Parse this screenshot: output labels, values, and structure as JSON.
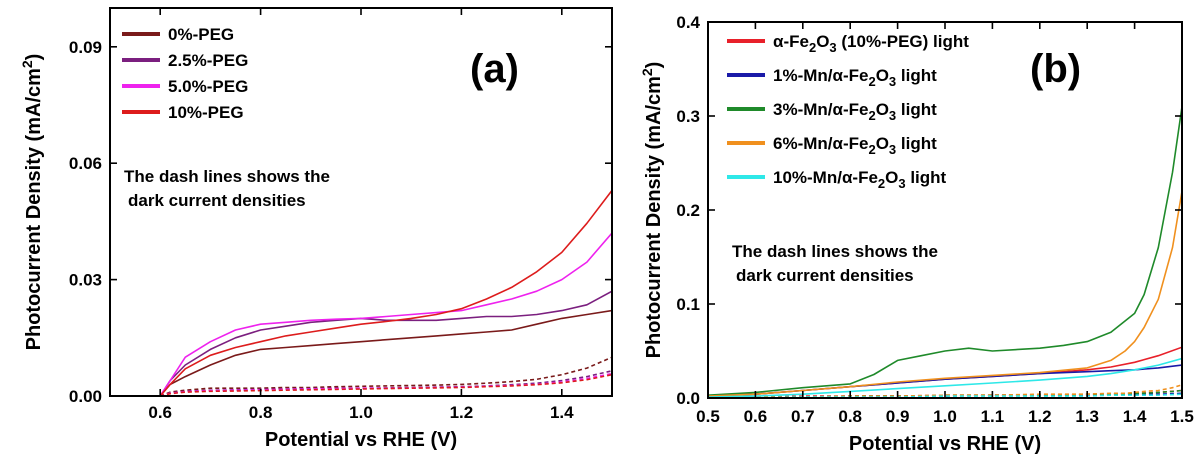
{
  "chart_data": [
    {
      "type": "line",
      "panel_label": "(a)",
      "xlabel": "Potential vs RHE (V)",
      "ylabel": "Photocurrent Density (mA/cm",
      "ylabel_sup": "2",
      "ylabel_close": ")",
      "xlim": [
        0.5,
        1.5
      ],
      "ylim": [
        0,
        0.1
      ],
      "xticks": [
        0.6,
        0.8,
        1.0,
        1.2,
        1.4
      ],
      "xticklabels": [
        "0.6",
        "0.8",
        "1.0",
        "1.2",
        "1.4"
      ],
      "yticks": [
        0,
        0.03,
        0.06,
        0.09
      ],
      "yticklabels": [
        "0.00",
        "0.03",
        "0.06",
        "0.09"
      ],
      "legend_position": "top-left",
      "annotation": [
        "The dash lines shows the",
        "dark current densities"
      ],
      "series": [
        {
          "name": "0%-PEG",
          "color": "#7a1a1a",
          "x": [
            0.6,
            0.62,
            0.65,
            0.7,
            0.75,
            0.8,
            0.85,
            0.9,
            0.95,
            1.0,
            1.05,
            1.1,
            1.15,
            1.2,
            1.25,
            1.3,
            1.35,
            1.4,
            1.45,
            1.5
          ],
          "y": [
            0.0,
            0.003,
            0.005,
            0.008,
            0.0105,
            0.012,
            0.0125,
            0.013,
            0.0135,
            0.014,
            0.0145,
            0.015,
            0.0155,
            0.016,
            0.0165,
            0.017,
            0.0185,
            0.02,
            0.021,
            0.022
          ],
          "dark_y": [
            0.0,
            0.001,
            0.0015,
            0.002,
            0.002,
            0.002,
            0.0022,
            0.0022,
            0.0024,
            0.0025,
            0.0026,
            0.0027,
            0.0028,
            0.003,
            0.0033,
            0.0037,
            0.0043,
            0.0055,
            0.0072,
            0.01
          ]
        },
        {
          "name": "2.5%-PEG",
          "color": "#7b1f7f",
          "x": [
            0.6,
            0.62,
            0.65,
            0.7,
            0.75,
            0.8,
            0.85,
            0.9,
            0.95,
            1.0,
            1.05,
            1.1,
            1.15,
            1.2,
            1.25,
            1.3,
            1.35,
            1.4,
            1.45,
            1.5
          ],
          "y": [
            0.0,
            0.004,
            0.008,
            0.012,
            0.015,
            0.017,
            0.018,
            0.019,
            0.0195,
            0.02,
            0.0195,
            0.0195,
            0.0195,
            0.02,
            0.0205,
            0.0205,
            0.021,
            0.022,
            0.0235,
            0.027
          ],
          "dark_y": [
            0.0,
            0.0008,
            0.0012,
            0.0015,
            0.0016,
            0.0017,
            0.0018,
            0.0019,
            0.002,
            0.002,
            0.0021,
            0.0022,
            0.0023,
            0.0024,
            0.0026,
            0.0029,
            0.0033,
            0.004,
            0.005,
            0.0065
          ]
        },
        {
          "name": "5.0%-PEG",
          "color": "#ee22ee",
          "x": [
            0.6,
            0.62,
            0.65,
            0.7,
            0.75,
            0.8,
            0.85,
            0.9,
            0.95,
            1.0,
            1.05,
            1.1,
            1.15,
            1.2,
            1.25,
            1.3,
            1.35,
            1.4,
            1.45,
            1.5
          ],
          "y": [
            0.0,
            0.004,
            0.01,
            0.014,
            0.017,
            0.0185,
            0.019,
            0.0195,
            0.0198,
            0.02,
            0.0205,
            0.021,
            0.0215,
            0.022,
            0.0235,
            0.025,
            0.027,
            0.03,
            0.0345,
            0.042
          ],
          "dark_y": [
            0.0,
            0.0007,
            0.0011,
            0.0014,
            0.0015,
            0.0016,
            0.0017,
            0.0018,
            0.0019,
            0.002,
            0.002,
            0.0021,
            0.0022,
            0.0023,
            0.0025,
            0.0027,
            0.003,
            0.0036,
            0.0045,
            0.0058
          ]
        },
        {
          "name": "10%-PEG",
          "color": "#dd1c1c",
          "x": [
            0.6,
            0.62,
            0.65,
            0.7,
            0.75,
            0.8,
            0.85,
            0.9,
            0.95,
            1.0,
            1.05,
            1.1,
            1.15,
            1.2,
            1.25,
            1.3,
            1.35,
            1.4,
            1.45,
            1.5
          ],
          "y": [
            0.0,
            0.003,
            0.007,
            0.0105,
            0.0125,
            0.014,
            0.0155,
            0.0165,
            0.0175,
            0.0185,
            0.0192,
            0.02,
            0.021,
            0.0225,
            0.025,
            0.028,
            0.032,
            0.037,
            0.0445,
            0.053
          ],
          "dark_y": [
            0.0,
            0.0006,
            0.001,
            0.0012,
            0.0013,
            0.0014,
            0.0015,
            0.0016,
            0.0017,
            0.0018,
            0.0019,
            0.002,
            0.0021,
            0.0022,
            0.0024,
            0.0026,
            0.0029,
            0.0034,
            0.0042,
            0.0055
          ]
        }
      ]
    },
    {
      "type": "line",
      "panel_label": "(b)",
      "xlabel": "Potential vs RHE (V)",
      "ylabel": "Photocurrent Density (mA/cm",
      "ylabel_sup": "2",
      "ylabel_close": ")",
      "xlim": [
        0.5,
        1.5
      ],
      "ylim": [
        0,
        0.4
      ],
      "xticks": [
        0.5,
        0.6,
        0.7,
        0.8,
        0.9,
        1.0,
        1.1,
        1.2,
        1.3,
        1.4,
        1.5
      ],
      "xticklabels": [
        "0.5",
        "0.6",
        "0.7",
        "0.8",
        "0.9",
        "1.0",
        "1.1",
        "1.2",
        "1.3",
        "1.4",
        "1.5"
      ],
      "yticks": [
        0,
        0.1,
        0.2,
        0.3,
        0.4
      ],
      "yticklabels": [
        "0.0",
        "0.1",
        "0.2",
        "0.3",
        "0.4"
      ],
      "legend_position": "top-left",
      "annotation": [
        "The dash lines shows the",
        "dark current densities"
      ],
      "series": [
        {
          "name": "α-Fe₂O₃ (10%-PEG) light",
          "legend_parts": [
            "α-Fe",
            "2",
            "O",
            "3",
            " (10%-PEG) light"
          ],
          "color": "#e8202a",
          "x": [
            0.5,
            0.6,
            0.7,
            0.8,
            0.9,
            1.0,
            1.1,
            1.2,
            1.3,
            1.35,
            1.4,
            1.45,
            1.5
          ],
          "y": [
            0.002,
            0.004,
            0.008,
            0.012,
            0.016,
            0.02,
            0.023,
            0.026,
            0.03,
            0.033,
            0.038,
            0.045,
            0.054
          ],
          "dark_y": [
            0.0,
            0.001,
            0.002,
            0.002,
            0.002,
            0.003,
            0.003,
            0.003,
            0.004,
            0.004,
            0.005,
            0.006,
            0.008
          ]
        },
        {
          "name": "1%-Mn/α-Fe₂O₃ light",
          "legend_parts": [
            "1%-Mn/α-Fe",
            "2",
            "O",
            "3",
            " light"
          ],
          "color": "#1a1aa8",
          "x": [
            0.5,
            0.6,
            0.7,
            0.8,
            0.9,
            1.0,
            1.1,
            1.2,
            1.3,
            1.35,
            1.4,
            1.45,
            1.5
          ],
          "y": [
            0.002,
            0.004,
            0.008,
            0.012,
            0.016,
            0.02,
            0.023,
            0.026,
            0.028,
            0.029,
            0.03,
            0.032,
            0.035
          ],
          "dark_y": [
            0.0,
            0.001,
            0.001,
            0.002,
            0.002,
            0.002,
            0.003,
            0.003,
            0.003,
            0.003,
            0.004,
            0.004,
            0.005
          ]
        },
        {
          "name": "3%-Mn/α-Fe₂O₃ light",
          "legend_parts": [
            "3%-Mn/α-Fe",
            "2",
            "O",
            "3",
            " light"
          ],
          "color": "#1f8a2a",
          "x": [
            0.5,
            0.6,
            0.7,
            0.8,
            0.85,
            0.9,
            0.95,
            1.0,
            1.05,
            1.1,
            1.2,
            1.25,
            1.3,
            1.35,
            1.4,
            1.42,
            1.45,
            1.48,
            1.5
          ],
          "y": [
            0.003,
            0.006,
            0.011,
            0.015,
            0.025,
            0.04,
            0.045,
            0.05,
            0.053,
            0.05,
            0.053,
            0.056,
            0.06,
            0.07,
            0.09,
            0.11,
            0.16,
            0.24,
            0.31
          ],
          "dark_y": [
            0.0,
            0.001,
            0.001,
            0.002,
            0.002,
            0.002,
            0.002,
            0.003,
            0.003,
            0.003,
            0.003,
            0.003,
            0.004,
            0.004,
            0.005,
            0.005,
            0.006,
            0.007,
            0.008
          ]
        },
        {
          "name": "6%-Mn/α-Fe₂O₃ light",
          "legend_parts": [
            "6%-Mn/α-Fe",
            "2",
            "O",
            "3",
            " light"
          ],
          "color": "#f0901e",
          "x": [
            0.5,
            0.6,
            0.7,
            0.8,
            0.9,
            1.0,
            1.1,
            1.2,
            1.3,
            1.35,
            1.38,
            1.4,
            1.42,
            1.45,
            1.48,
            1.5
          ],
          "y": [
            0.002,
            0.004,
            0.008,
            0.012,
            0.017,
            0.021,
            0.024,
            0.027,
            0.032,
            0.04,
            0.05,
            0.06,
            0.075,
            0.105,
            0.16,
            0.22
          ],
          "dark_y": [
            0.0,
            0.001,
            0.001,
            0.002,
            0.002,
            0.003,
            0.003,
            0.004,
            0.004,
            0.005,
            0.005,
            0.006,
            0.007,
            0.008,
            0.011,
            0.014
          ]
        },
        {
          "name": "10%-Mn/α-Fe₂O₃ light",
          "legend_parts": [
            "10%-Mn/α-Fe",
            "2",
            "O",
            "3",
            " light"
          ],
          "color": "#2ee8e8",
          "x": [
            0.5,
            0.6,
            0.7,
            0.8,
            0.9,
            1.0,
            1.1,
            1.2,
            1.3,
            1.35,
            1.4,
            1.45,
            1.5
          ],
          "y": [
            0.001,
            0.002,
            0.004,
            0.007,
            0.01,
            0.013,
            0.016,
            0.019,
            0.023,
            0.026,
            0.03,
            0.035,
            0.042
          ],
          "dark_y": [
            0.0,
            0.0,
            0.001,
            0.001,
            0.001,
            0.002,
            0.002,
            0.002,
            0.002,
            0.003,
            0.003,
            0.003,
            0.004
          ]
        }
      ]
    }
  ]
}
